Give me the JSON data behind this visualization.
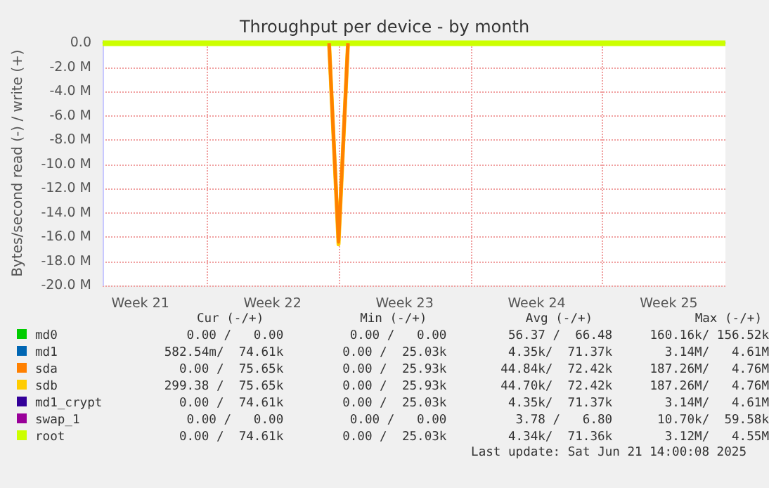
{
  "chart_data": {
    "type": "line",
    "title": "Throughput per device - by month",
    "ylabel": "Bytes/second read (-) / write (+)",
    "categories": [
      null,
      null,
      null,
      null,
      "Week 21",
      null,
      null,
      null,
      null,
      null,
      null,
      null,
      null,
      null,
      null,
      null,
      null,
      null,
      "Week 22",
      null,
      null,
      null,
      null,
      null,
      null,
      null,
      null,
      null,
      null,
      null,
      null,
      null,
      "Week 23",
      null,
      null,
      null,
      null,
      null,
      null,
      null,
      null,
      null,
      null,
      null,
      null,
      null,
      "Week 24",
      null,
      null,
      null,
      null,
      null,
      null,
      null,
      null,
      null,
      null,
      null,
      null,
      null,
      "Week 25",
      null,
      null,
      null,
      null,
      null,
      null
    ],
    "ylim": [
      -20,
      0.2
    ],
    "yticks": [
      {
        "value": -20,
        "label": "-20.0 M"
      },
      {
        "value": -18,
        "label": "-18.0 M"
      },
      {
        "value": -16,
        "label": "-16.0 M"
      },
      {
        "value": -14,
        "label": "-14.0 M"
      },
      {
        "value": -12,
        "label": "-12.0 M"
      },
      {
        "value": -10,
        "label": "-10.0 M"
      },
      {
        "value": -8,
        "label": "-8.0 M"
      },
      {
        "value": -6,
        "label": "-6.0 M"
      },
      {
        "value": -4,
        "label": "-4.0 M"
      },
      {
        "value": -2,
        "label": "-2.0 M"
      },
      {
        "value": 0,
        "label": "0.0"
      }
    ],
    "grid": true,
    "legend": "bottom",
    "marker": "none",
    "line_style": "solid",
    "series": [
      {
        "name": "md0",
        "color": "#00cc00",
        "values": [
          null,
          null,
          null,
          null,
          null,
          null,
          null,
          null,
          null,
          null,
          null,
          null,
          null,
          null,
          null,
          null,
          null,
          null,
          null,
          null,
          null,
          null,
          null,
          null,
          null,
          null,
          null,
          null,
          null,
          null,
          null,
          null,
          null,
          null,
          null,
          null,
          null,
          null,
          null,
          null,
          null,
          null,
          null,
          null,
          null,
          null,
          null,
          null,
          null,
          null,
          null,
          null,
          null,
          null,
          null,
          null,
          null,
          null,
          null,
          null,
          null,
          null,
          null,
          null,
          null,
          null,
          null
        ]
      },
      {
        "name": "md1",
        "color": "#0066b3",
        "values": [
          null,
          null,
          null,
          null,
          null,
          null,
          null,
          null,
          null,
          null,
          null,
          null,
          null,
          null,
          null,
          null,
          null,
          null,
          null,
          null,
          null,
          null,
          null,
          null,
          null,
          null,
          null,
          null,
          null,
          null,
          null,
          null,
          null,
          null,
          null,
          null,
          null,
          null,
          null,
          null,
          null,
          null,
          null,
          null,
          null,
          null,
          null,
          null,
          null,
          null,
          null,
          null,
          null,
          null,
          null,
          null,
          null,
          null,
          null,
          null,
          null,
          null,
          null,
          null,
          null,
          null,
          null
        ]
      },
      {
        "name": "sda",
        "color": "#ff8000",
        "values": [
          null,
          null,
          null,
          null,
          null,
          null,
          null,
          null,
          null,
          null,
          null,
          null,
          null,
          null,
          null,
          null,
          null,
          null,
          null,
          null,
          null,
          null,
          null,
          null,
          0,
          -16.4,
          0,
          null,
          null,
          null,
          null,
          null,
          null,
          null,
          null,
          null,
          null,
          null,
          null,
          null,
          null,
          null,
          null,
          null,
          null,
          null,
          null,
          null,
          null,
          null,
          null,
          null,
          null,
          null,
          null,
          null,
          null,
          null,
          null,
          null,
          null,
          null,
          null,
          null,
          null,
          null,
          null
        ]
      },
      {
        "name": "sdb",
        "color": "#ffcc00",
        "values": [
          null,
          null,
          null,
          null,
          null,
          null,
          null,
          null,
          null,
          null,
          null,
          null,
          null,
          null,
          null,
          null,
          null,
          null,
          null,
          null,
          null,
          null,
          null,
          null,
          0,
          -16.6,
          0,
          null,
          null,
          null,
          null,
          null,
          null,
          null,
          null,
          null,
          null,
          null,
          null,
          null,
          null,
          null,
          null,
          null,
          null,
          null,
          null,
          null,
          null,
          null,
          null,
          null,
          null,
          null,
          null,
          null,
          null,
          null,
          null,
          null,
          null,
          null,
          null,
          null,
          null,
          null,
          null
        ]
      },
      {
        "name": "md1_crypt",
        "color": "#330099",
        "values": [
          null,
          null,
          null,
          null,
          null,
          null,
          null,
          null,
          null,
          null,
          null,
          null,
          null,
          null,
          null,
          null,
          null,
          null,
          null,
          null,
          null,
          null,
          null,
          null,
          null,
          null,
          null,
          null,
          null,
          null,
          null,
          null,
          null,
          null,
          null,
          null,
          null,
          null,
          null,
          null,
          null,
          null,
          null,
          null,
          null,
          null,
          null,
          null,
          null,
          null,
          null,
          null,
          null,
          null,
          null,
          null,
          null,
          null,
          null,
          null,
          null,
          null,
          null,
          null,
          null,
          null,
          null
        ]
      },
      {
        "name": "swap_1",
        "color": "#990099",
        "values": [
          null,
          null,
          null,
          null,
          null,
          null,
          null,
          null,
          null,
          null,
          null,
          null,
          null,
          null,
          null,
          null,
          null,
          null,
          null,
          null,
          null,
          null,
          null,
          null,
          null,
          null,
          null,
          null,
          null,
          null,
          null,
          null,
          null,
          null,
          null,
          null,
          null,
          null,
          null,
          null,
          null,
          null,
          null,
          null,
          null,
          null,
          null,
          null,
          null,
          null,
          null,
          null,
          null,
          null,
          null,
          null,
          null,
          null,
          null,
          null,
          null,
          null,
          null,
          null,
          null,
          null,
          null
        ]
      },
      {
        "name": "root",
        "color": "#ccff00",
        "values": [
          0,
          0,
          0,
          0,
          0,
          0,
          0,
          0,
          0,
          0,
          0,
          0,
          0,
          0,
          0,
          0,
          0,
          0,
          0,
          0,
          0,
          0,
          0,
          0,
          0,
          0,
          0,
          0,
          0,
          0,
          0,
          0,
          0,
          0,
          0,
          0,
          0,
          0,
          0,
          0,
          0,
          0,
          0,
          0,
          0,
          0,
          0,
          0,
          0,
          0,
          0,
          0,
          0,
          0,
          0,
          0,
          0,
          0,
          0,
          0,
          0,
          0,
          0,
          0,
          0,
          0,
          0
        ]
      }
    ],
    "annotations": [
      "Cur (-/+)",
      "Min (-/+)",
      "Avg (-/+)",
      "Max (-/+)",
      "0.00 /   0.00",
      "0.00 /   0.00",
      "56.37 /  66.48",
      "160.16k/ 156.52k",
      "582.54m/  74.61k",
      "0.00 /  25.03k",
      "4.35k/  71.37k",
      "3.14M/   4.61M",
      "0.00 /  75.65k",
      "0.00 /  25.93k",
      "44.84k/  72.42k",
      "187.26M/   4.76M",
      "299.38 /  75.65k",
      "0.00 /  25.93k",
      "44.70k/  72.42k",
      "187.26M/   4.76M",
      "0.00 /  74.61k",
      "0.00 /  25.03k",
      "4.35k/  71.37k",
      "3.14M/   4.61M",
      "0.00 /   0.00",
      "0.00 /   0.00",
      "3.78 /   6.80",
      "10.70k/  59.58k",
      "0.00 /  74.61k",
      "0.00 /  25.03k",
      "4.34k/  71.36k",
      "3.12M/   4.55M",
      "Last update: Sat Jun 21 14:00:08 2025"
    ]
  }
}
